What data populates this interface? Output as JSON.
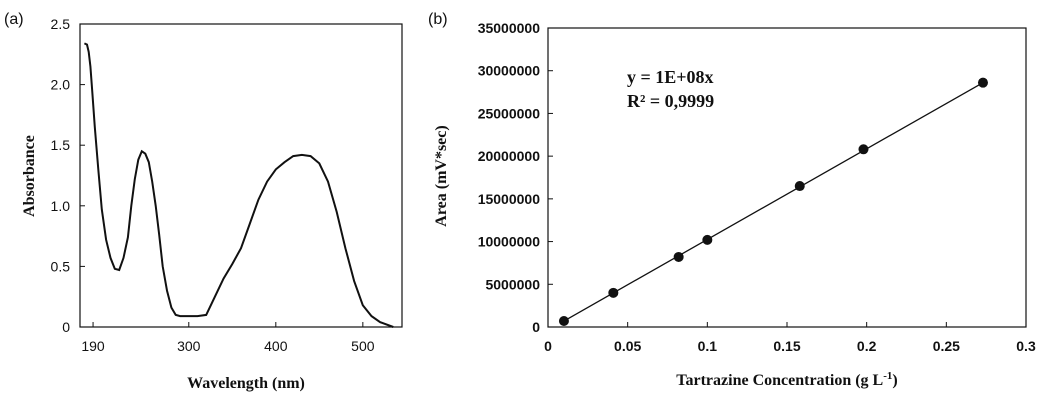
{
  "chart_data": [
    {
      "panel": "(a)",
      "type": "line",
      "xlabel": "Wavelength (nm)",
      "ylabel": "Absorbance",
      "xlim": [
        175,
        545
      ],
      "ylim": [
        0,
        2.5
      ],
      "x_ticks": [
        {
          "value": 190,
          "label": "190"
        },
        {
          "value": 300,
          "label": "300"
        },
        {
          "value": 400,
          "label": "400"
        },
        {
          "value": 500,
          "label": "500"
        }
      ],
      "y_ticks": [
        {
          "value": 0,
          "label": "0"
        },
        {
          "value": 0.5,
          "label": "0.5"
        },
        {
          "value": 1.0,
          "label": "1.0"
        },
        {
          "value": 1.5,
          "label": "1.5"
        },
        {
          "value": 2.0,
          "label": "2.0"
        },
        {
          "value": 2.5,
          "label": "2.5"
        }
      ],
      "grid": false,
      "series": [
        {
          "x": [
            180,
            183,
            185,
            187,
            189,
            192,
            196,
            200,
            205,
            210,
            215,
            220,
            225,
            230,
            234,
            238,
            242,
            246,
            250,
            254,
            258,
            262,
            266,
            270,
            275,
            280,
            285,
            290,
            295,
            300,
            310,
            320,
            330,
            340,
            350,
            360,
            370,
            380,
            390,
            400,
            410,
            420,
            430,
            440,
            450,
            460,
            470,
            480,
            490,
            500,
            510,
            520,
            535
          ],
          "y": [
            2.34,
            2.33,
            2.27,
            2.15,
            1.95,
            1.65,
            1.3,
            0.97,
            0.72,
            0.57,
            0.48,
            0.47,
            0.57,
            0.74,
            1.0,
            1.22,
            1.38,
            1.45,
            1.43,
            1.36,
            1.2,
            1.0,
            0.76,
            0.5,
            0.3,
            0.16,
            0.1,
            0.09,
            0.09,
            0.09,
            0.09,
            0.1,
            0.25,
            0.4,
            0.52,
            0.65,
            0.85,
            1.05,
            1.2,
            1.3,
            1.36,
            1.41,
            1.42,
            1.41,
            1.35,
            1.2,
            0.95,
            0.65,
            0.38,
            0.18,
            0.09,
            0.04,
            0.0
          ]
        }
      ]
    },
    {
      "panel": "(b)",
      "type": "scatter",
      "xlabel": "Tartrazine Concentration (g L",
      "xlabel_sup": "-1",
      "xlabel_end": ")",
      "ylabel": "Area (mV*sec)",
      "xlim": [
        0,
        0.3
      ],
      "ylim": [
        0,
        35000000
      ],
      "x_ticks": [
        {
          "value": 0,
          "label": "0"
        },
        {
          "value": 0.05,
          "label": "0.05"
        },
        {
          "value": 0.1,
          "label": "0.1"
        },
        {
          "value": 0.15,
          "label": "0.15"
        },
        {
          "value": 0.2,
          "label": "0.2"
        },
        {
          "value": 0.25,
          "label": "0.25"
        },
        {
          "value": 0.3,
          "label": "0.3"
        }
      ],
      "y_ticks": [
        {
          "value": 0,
          "label": "0"
        },
        {
          "value": 5000000,
          "label": "5000000"
        },
        {
          "value": 10000000,
          "label": "10000000"
        },
        {
          "value": 15000000,
          "label": "15000000"
        },
        {
          "value": 20000000,
          "label": "20000000"
        },
        {
          "value": 25000000,
          "label": "25000000"
        },
        {
          "value": 30000000,
          "label": "30000000"
        },
        {
          "value": 35000000,
          "label": "35000000"
        }
      ],
      "grid": false,
      "points": {
        "x": [
          0.01,
          0.041,
          0.082,
          0.1,
          0.158,
          0.198,
          0.273
        ],
        "y": [
          700000,
          4000000,
          8200000,
          10200000,
          16500000,
          20800000,
          28600000
        ]
      },
      "trendline": {
        "x": [
          0.01,
          0.273
        ],
        "y": [
          700000,
          28600000
        ]
      },
      "equation": "y = 1E+08x",
      "r2": "R² = 0,9999"
    }
  ]
}
